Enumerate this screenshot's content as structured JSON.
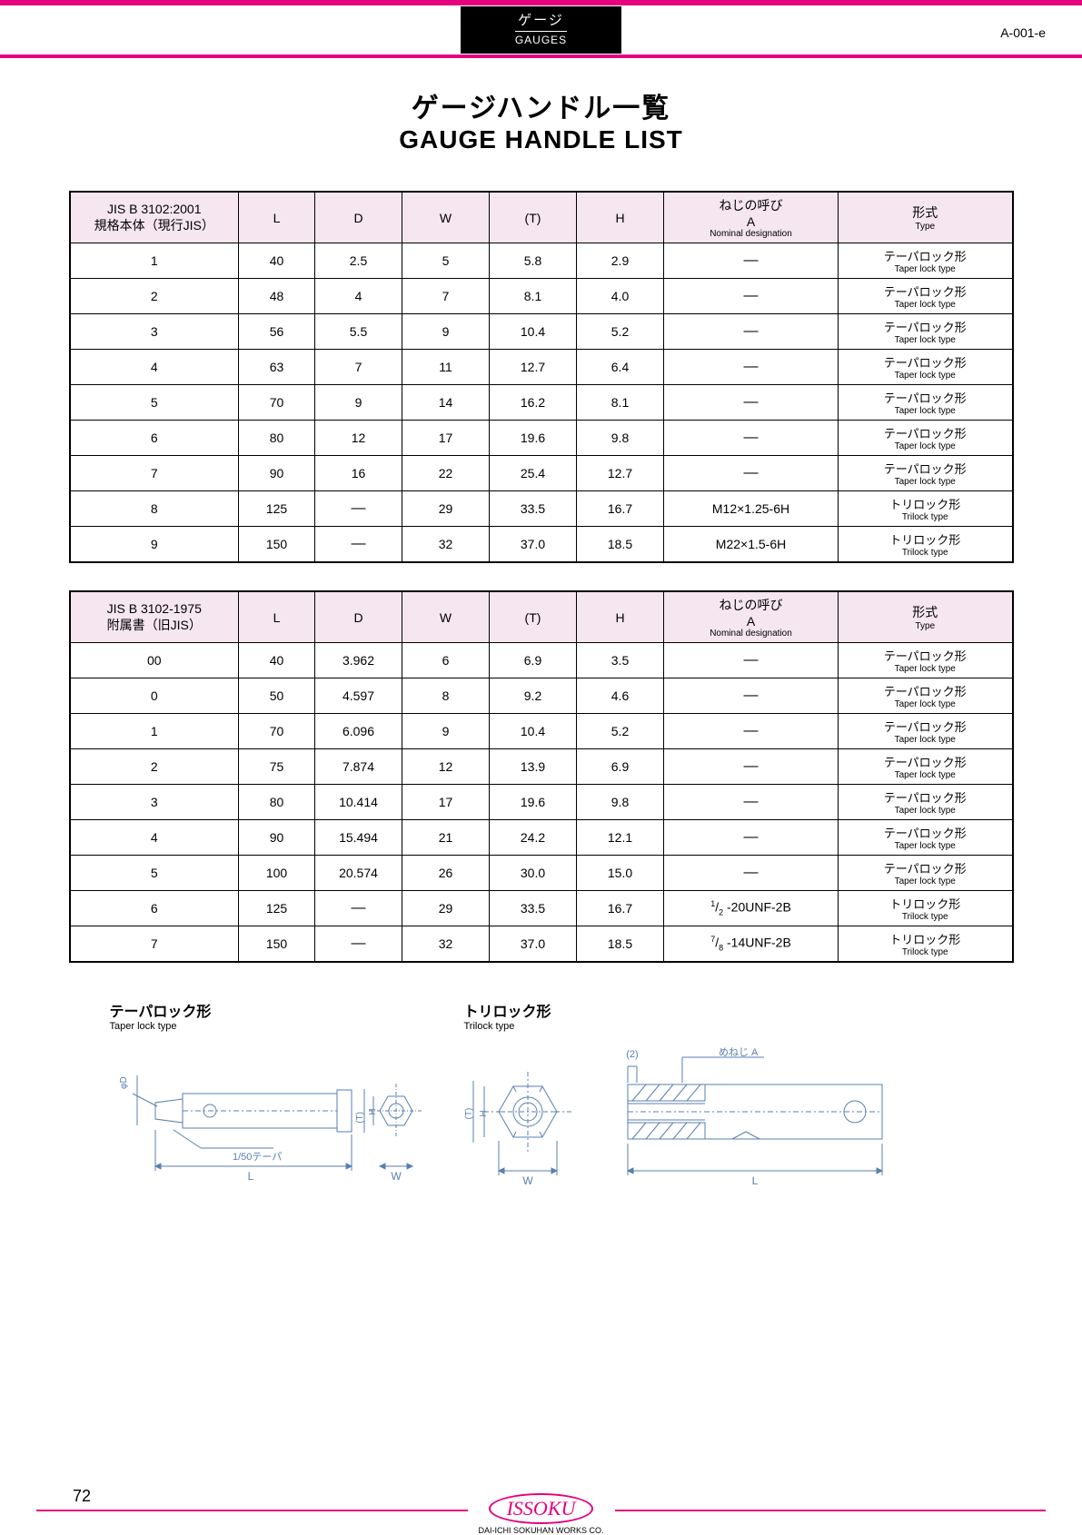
{
  "header": {
    "jp": "ゲージ",
    "en": "GAUGES",
    "page_code": "A-001-e"
  },
  "title": {
    "jp": "ゲージハンドル一覧",
    "en": "GAUGE HANDLE LIST"
  },
  "table1": {
    "head": {
      "jis": "JIS B 3102:2001",
      "jis_sub": "規格本体（現行JIS）",
      "l": "L",
      "d": "D",
      "w": "W",
      "t": "(T)",
      "h": "H",
      "a": "ねじの呼び",
      "a2": "A",
      "a_sub": "Nominal designation",
      "type": "形式",
      "type_sub": "Type"
    },
    "rows": [
      {
        "jis": "1",
        "l": "40",
        "d": "2.5",
        "w": "5",
        "t": "5.8",
        "h": "2.9",
        "a": "—",
        "type_jp": "テーパロック形",
        "type_en": "Taper lock type"
      },
      {
        "jis": "2",
        "l": "48",
        "d": "4",
        "w": "7",
        "t": "8.1",
        "h": "4.0",
        "a": "—",
        "type_jp": "テーパロック形",
        "type_en": "Taper lock type"
      },
      {
        "jis": "3",
        "l": "56",
        "d": "5.5",
        "w": "9",
        "t": "10.4",
        "h": "5.2",
        "a": "—",
        "type_jp": "テーパロック形",
        "type_en": "Taper lock type"
      },
      {
        "jis": "4",
        "l": "63",
        "d": "7",
        "w": "11",
        "t": "12.7",
        "h": "6.4",
        "a": "—",
        "type_jp": "テーパロック形",
        "type_en": "Taper lock type"
      },
      {
        "jis": "5",
        "l": "70",
        "d": "9",
        "w": "14",
        "t": "16.2",
        "h": "8.1",
        "a": "—",
        "type_jp": "テーパロック形",
        "type_en": "Taper lock type"
      },
      {
        "jis": "6",
        "l": "80",
        "d": "12",
        "w": "17",
        "t": "19.6",
        "h": "9.8",
        "a": "—",
        "type_jp": "テーパロック形",
        "type_en": "Taper lock type"
      },
      {
        "jis": "7",
        "l": "90",
        "d": "16",
        "w": "22",
        "t": "25.4",
        "h": "12.7",
        "a": "—",
        "type_jp": "テーパロック形",
        "type_en": "Taper lock type"
      },
      {
        "jis": "8",
        "l": "125",
        "d": "—",
        "w": "29",
        "t": "33.5",
        "h": "16.7",
        "a": "M12×1.25-6H",
        "type_jp": "トリロック形",
        "type_en": "Trilock  type"
      },
      {
        "jis": "9",
        "l": "150",
        "d": "—",
        "w": "32",
        "t": "37.0",
        "h": "18.5",
        "a": "M22×1.5-6H",
        "type_jp": "トリロック形",
        "type_en": "Trilock  type"
      }
    ]
  },
  "table2": {
    "head": {
      "jis": "JIS B 3102-1975",
      "jis_sub": "附属書（旧JIS）",
      "l": "L",
      "d": "D",
      "w": "W",
      "t": "(T)",
      "h": "H",
      "a": "ねじの呼び",
      "a2": "A",
      "a_sub": "Nominal designation",
      "type": "形式",
      "type_sub": "Type"
    },
    "rows": [
      {
        "jis": "00",
        "l": "40",
        "d": "3.962",
        "w": "6",
        "t": "6.9",
        "h": "3.5",
        "a": "—",
        "type_jp": "テーパロック形",
        "type_en": "Taper lock type"
      },
      {
        "jis": "0",
        "l": "50",
        "d": "4.597",
        "w": "8",
        "t": "9.2",
        "h": "4.6",
        "a": "—",
        "type_jp": "テーパロック形",
        "type_en": "Taper lock type"
      },
      {
        "jis": "1",
        "l": "70",
        "d": "6.096",
        "w": "9",
        "t": "10.4",
        "h": "5.2",
        "a": "—",
        "type_jp": "テーパロック形",
        "type_en": "Taper lock type"
      },
      {
        "jis": "2",
        "l": "75",
        "d": "7.874",
        "w": "12",
        "t": "13.9",
        "h": "6.9",
        "a": "—",
        "type_jp": "テーパロック形",
        "type_en": "Taper lock type"
      },
      {
        "jis": "3",
        "l": "80",
        "d": "10.414",
        "w": "17",
        "t": "19.6",
        "h": "9.8",
        "a": "—",
        "type_jp": "テーパロック形",
        "type_en": "Taper lock type"
      },
      {
        "jis": "4",
        "l": "90",
        "d": "15.494",
        "w": "21",
        "t": "24.2",
        "h": "12.1",
        "a": "—",
        "type_jp": "テーパロック形",
        "type_en": "Taper lock type"
      },
      {
        "jis": "5",
        "l": "100",
        "d": "20.574",
        "w": "26",
        "t": "30.0",
        "h": "15.0",
        "a": "—",
        "type_jp": "テーパロック形",
        "type_en": "Taper lock type"
      },
      {
        "jis": "6",
        "l": "125",
        "d": "—",
        "w": "29",
        "t": "33.5",
        "h": "16.7",
        "a": "1/2 -20UNF-2B",
        "type_jp": "トリロック形",
        "type_en": "Trilock  type"
      },
      {
        "jis": "7",
        "l": "150",
        "d": "—",
        "w": "32",
        "t": "37.0",
        "h": "18.5",
        "a": "7/8 -14UNF-2B",
        "type_jp": "トリロック形",
        "type_en": "Trilock  type"
      }
    ]
  },
  "diagrams": {
    "taper_jp": "テーパロック形",
    "taper_en": "Taper lock type",
    "trilock_jp": "トリロック形",
    "trilock_en": "Trilock  type",
    "dim_L": "L",
    "dim_W": "W",
    "dim_T": "(T)",
    "dim_H": "H",
    "dim_phiD": "φD",
    "taper_note": "1/50テーパ",
    "dim_2": "(2)",
    "thread_label": "めねじ  A"
  },
  "footer": {
    "brand": "ISSOKU",
    "company": "DAI-ICHI SOKUHAN WORKS CO.",
    "page_num": "72"
  },
  "colors": {
    "magenta": "#e6007e",
    "header_lavender": "#f5e6f0",
    "diagram_blue": "#5a7fb0"
  }
}
